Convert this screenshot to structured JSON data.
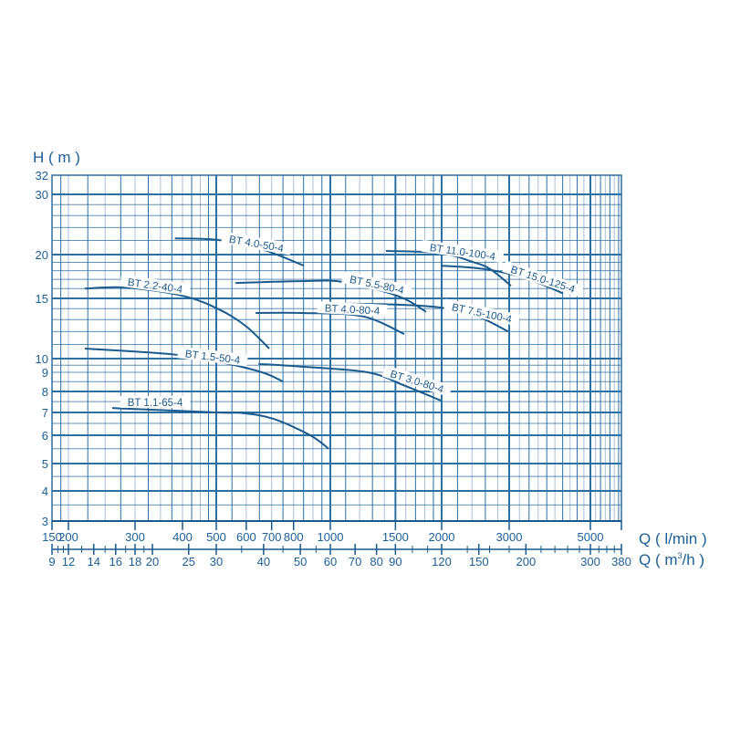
{
  "chart_data": {
    "type": "line",
    "title": "",
    "ylabel": "H ( m )",
    "xlabel": "Q ( l/min )",
    "x2label_prefix": "Q ( m",
    "x2label_sup": "3",
    "x2label_suffix": "/h )",
    "x_scale": "log",
    "y_scale": "log",
    "xlim": [
      150,
      6333
    ],
    "ylim": [
      3,
      32
    ],
    "grid": true,
    "colors": {
      "line": "#1b5a8c",
      "grid": "#2b6fa3",
      "grid_light": "#a9bfd6",
      "text": "#1b5f96"
    },
    "x_ticks": [
      150,
      200,
      300,
      400,
      500,
      600,
      700,
      800,
      1000,
      1500,
      2000,
      3000,
      5000
    ],
    "x2_ticks": [
      9,
      12,
      14,
      16,
      18,
      20,
      25,
      30,
      40,
      50,
      60,
      70,
      80,
      90,
      120,
      150,
      200,
      300,
      380
    ],
    "y_ticks": [
      3,
      4,
      5,
      6,
      7,
      8,
      9,
      10,
      15,
      20,
      30,
      32
    ],
    "series": [
      {
        "name": "BT 4.0-50-4",
        "points": [
          [
            382,
            22.3
          ],
          [
            500,
            22.1
          ],
          [
            646,
            20.9
          ],
          [
            852,
            18.6
          ]
        ]
      },
      {
        "name": "BT 2.2-40-4",
        "points": [
          [
            221,
            16.0
          ],
          [
            287,
            16.1
          ],
          [
            407,
            15.2
          ],
          [
            517,
            13.8
          ],
          [
            601,
            12.4
          ],
          [
            690,
            10.7
          ]
        ]
      },
      {
        "name": "BT 1.5-50-4",
        "points": [
          [
            221,
            10.7
          ],
          [
            374,
            10.3
          ],
          [
            500,
            9.8
          ],
          [
            660,
            9.0
          ],
          [
            750,
            8.5
          ]
        ]
      },
      {
        "name": "BT 1.1-65-4",
        "points": [
          [
            261,
            7.2
          ],
          [
            500,
            7.0
          ],
          [
            590,
            6.97
          ],
          [
            709,
            6.7
          ],
          [
            885,
            6.0
          ],
          [
            990,
            5.5
          ]
        ]
      },
      {
        "name": "BT 5.5-80-4",
        "points": [
          [
            562,
            16.6
          ],
          [
            837,
            16.8
          ],
          [
            1089,
            16.7
          ],
          [
            1532,
            15.2
          ],
          [
            1815,
            13.7
          ]
        ]
      },
      {
        "name": "BT 4.0-80-4",
        "points": [
          [
            635,
            13.6
          ],
          [
            837,
            13.6
          ],
          [
            1220,
            13.3
          ],
          [
            1584,
            11.8
          ]
        ]
      },
      {
        "name": "BT 7.5-100-4",
        "points": [
          [
            1029,
            14.5
          ],
          [
            1471,
            14.4
          ],
          [
            1990,
            14.1
          ],
          [
            2477,
            13.3
          ],
          [
            2980,
            12.0
          ]
        ]
      },
      {
        "name": "BT 11.0-100-4",
        "points": [
          [
            1414,
            20.5
          ],
          [
            1990,
            20.2
          ],
          [
            2396,
            19.1
          ],
          [
            2674,
            18.2
          ],
          [
            3034,
            16.3
          ]
        ]
      },
      {
        "name": "BT 15.0-125-4",
        "points": [
          [
            1990,
            18.6
          ],
          [
            2574,
            18.2
          ],
          [
            3345,
            17.1
          ],
          [
            4209,
            15.5
          ]
        ]
      },
      {
        "name": "BT 3.0-80-4",
        "points": [
          [
            646,
            9.6
          ],
          [
            837,
            9.4
          ],
          [
            1262,
            9.0
          ],
          [
            1584,
            8.3
          ],
          [
            1990,
            7.55
          ]
        ]
      }
    ]
  }
}
